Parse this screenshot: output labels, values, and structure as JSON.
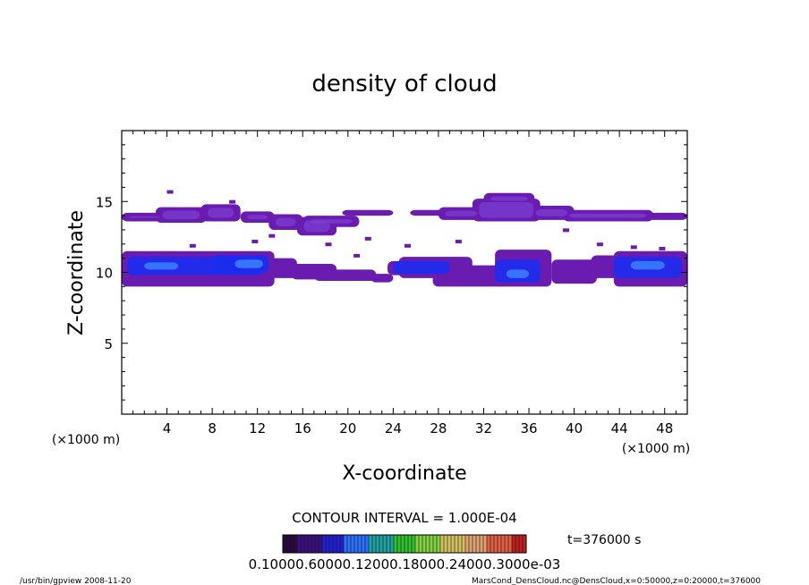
{
  "chart_data": {
    "type": "heatmap",
    "title": "density of cloud",
    "xlabel": "X-coordinate",
    "ylabel": "Z-coordinate",
    "x_unit_left": "(×1000 m)",
    "x_unit_right": "(×1000 m)",
    "xlim": [
      0,
      50
    ],
    "ylim": [
      0,
      20
    ],
    "x_ticks": [
      "4",
      "8",
      "12",
      "16",
      "20",
      "24",
      "28",
      "32",
      "36",
      "40",
      "44",
      "48"
    ],
    "x_tick_values": [
      4,
      8,
      12,
      16,
      20,
      24,
      28,
      32,
      36,
      40,
      44,
      48
    ],
    "y_ticks": [
      "5",
      "10",
      "15"
    ],
    "y_tick_values": [
      5,
      10,
      15
    ],
    "contour_interval": "CONTOUR INTERVAL = 1.000E-04",
    "time_label": "t=376000 s",
    "colorbar_labels": "0.10000.60000.12000.18000.24000.3000e-03",
    "colors": {
      "low": "#6a1bb0",
      "mid": "#7a3fd0",
      "high": "#1c2cf0",
      "peak": "#3a7cff"
    },
    "cloud_layers": [
      {
        "name": "upper",
        "z_min": 13.5,
        "z_max": 15.6,
        "x_min": 0,
        "x_max": 50
      },
      {
        "name": "lower",
        "z_min": 9.0,
        "z_max": 11.5,
        "x_min": 0,
        "x_max": 50
      }
    ]
  },
  "footer": {
    "program": "/usr/bin/gpview   2008-11-20",
    "source": "MarsCond_DensCloud.nc@DensCloud,x=0:50000,z=0:20000,t=376000"
  }
}
